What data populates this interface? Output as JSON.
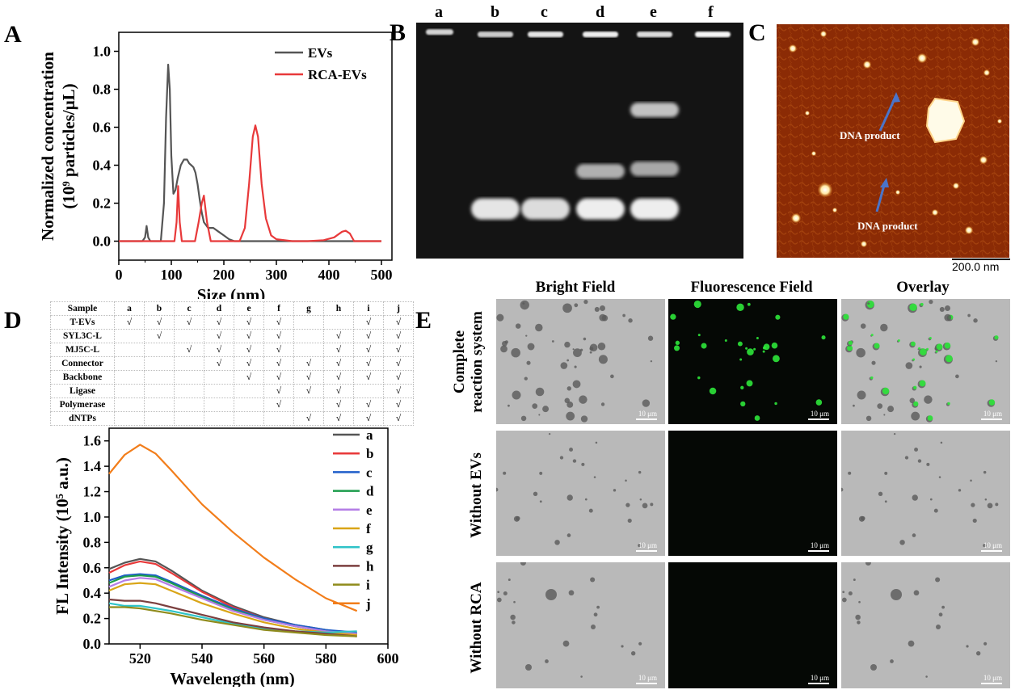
{
  "panels": {
    "A": "A",
    "B": "B",
    "C": "C",
    "D": "D",
    "E": "E"
  },
  "chart_data": [
    {
      "type": "line",
      "panel": "A",
      "xlabel": "Size (nm)",
      "ylabel": "Normalized concentration",
      "ylabel_line2": "(10⁹ particles/μL)",
      "xlim": [
        0,
        520
      ],
      "ylim": [
        -0.1,
        1.1
      ],
      "xticks": [
        0,
        100,
        200,
        300,
        400,
        500
      ],
      "yticks": [
        0.0,
        0.2,
        0.4,
        0.6,
        0.8,
        1.0
      ],
      "legend_position": "top-right",
      "series": [
        {
          "name": "EVs",
          "color": "#555555",
          "x": [
            0,
            45,
            50,
            53,
            56,
            60,
            80,
            86,
            90,
            94,
            97,
            100,
            104,
            108,
            112,
            118,
            124,
            130,
            134,
            138,
            142,
            146,
            150,
            154,
            158,
            162,
            170,
            180,
            190,
            200,
            210,
            220,
            240,
            300,
            500
          ],
          "y": [
            0,
            0,
            0.02,
            0.08,
            0.02,
            0,
            0,
            0.2,
            0.65,
            0.93,
            0.8,
            0.45,
            0.25,
            0.27,
            0.33,
            0.4,
            0.43,
            0.43,
            0.41,
            0.4,
            0.39,
            0.36,
            0.3,
            0.22,
            0.15,
            0.1,
            0.07,
            0.07,
            0.05,
            0.03,
            0.01,
            0,
            0,
            0,
            0
          ]
        },
        {
          "name": "RCA-EVs",
          "color": "#e8393a",
          "x": [
            0,
            100,
            106,
            110,
            113,
            116,
            120,
            130,
            145,
            152,
            158,
            162,
            168,
            175,
            200,
            230,
            240,
            248,
            255,
            260,
            265,
            272,
            280,
            290,
            300,
            330,
            360,
            390,
            410,
            425,
            432,
            440,
            448,
            500
          ],
          "y": [
            0,
            0,
            0,
            0.1,
            0.29,
            0.1,
            0,
            0,
            0,
            0.1,
            0.2,
            0.24,
            0.1,
            0,
            0,
            0,
            0.07,
            0.3,
            0.55,
            0.61,
            0.55,
            0.3,
            0.12,
            0.03,
            0.01,
            0,
            0,
            0.005,
            0.02,
            0.05,
            0.055,
            0.04,
            0,
            0
          ]
        }
      ]
    },
    {
      "type": "line",
      "panel": "D",
      "xlabel": "Wavelength (nm)",
      "ylabel": "FL Intensity (10⁵ a.u.)",
      "xlim": [
        510,
        600
      ],
      "ylim": [
        0,
        1.7
      ],
      "xticks": [
        520,
        540,
        560,
        580,
        600
      ],
      "yticks": [
        0.0,
        0.2,
        0.4,
        0.6,
        0.8,
        1.0,
        1.2,
        1.4,
        1.6
      ],
      "legend_position": "right",
      "x": [
        510,
        515,
        520,
        525,
        530,
        540,
        550,
        560,
        570,
        580,
        590
      ],
      "series": [
        {
          "name": "a",
          "color": "#555555",
          "values": [
            0.59,
            0.64,
            0.67,
            0.65,
            0.58,
            0.42,
            0.3,
            0.21,
            0.15,
            0.11,
            0.08
          ]
        },
        {
          "name": "b",
          "color": "#e8393a",
          "values": [
            0.56,
            0.62,
            0.65,
            0.63,
            0.56,
            0.41,
            0.29,
            0.2,
            0.14,
            0.1,
            0.07
          ]
        },
        {
          "name": "c",
          "color": "#1f5ec9",
          "values": [
            0.5,
            0.54,
            0.55,
            0.54,
            0.49,
            0.38,
            0.28,
            0.2,
            0.15,
            0.11,
            0.09
          ]
        },
        {
          "name": "d",
          "color": "#1c9c4c",
          "values": [
            0.48,
            0.53,
            0.54,
            0.53,
            0.48,
            0.37,
            0.27,
            0.19,
            0.14,
            0.1,
            0.08
          ]
        },
        {
          "name": "e",
          "color": "#b47de6",
          "values": [
            0.45,
            0.5,
            0.52,
            0.51,
            0.46,
            0.36,
            0.26,
            0.19,
            0.14,
            0.1,
            0.08
          ]
        },
        {
          "name": "f",
          "color": "#d9a517",
          "values": [
            0.42,
            0.47,
            0.48,
            0.47,
            0.42,
            0.32,
            0.24,
            0.17,
            0.12,
            0.09,
            0.07
          ]
        },
        {
          "name": "g",
          "color": "#2fc3c8",
          "values": [
            0.32,
            0.3,
            0.3,
            0.28,
            0.26,
            0.21,
            0.16,
            0.12,
            0.1,
            0.09,
            0.1
          ]
        },
        {
          "name": "h",
          "color": "#7b3f3f",
          "values": [
            0.35,
            0.34,
            0.34,
            0.32,
            0.29,
            0.23,
            0.17,
            0.13,
            0.1,
            0.08,
            0.06
          ]
        },
        {
          "name": "i",
          "color": "#8f8b1c",
          "values": [
            0.29,
            0.29,
            0.28,
            0.26,
            0.24,
            0.19,
            0.15,
            0.11,
            0.09,
            0.07,
            0.06
          ]
        },
        {
          "name": "j",
          "color": "#f27d1a",
          "values": [
            1.34,
            1.49,
            1.57,
            1.5,
            1.37,
            1.1,
            0.88,
            0.68,
            0.51,
            0.36,
            0.26
          ]
        }
      ]
    }
  ],
  "gel": {
    "lanes": [
      "a",
      "b",
      "c",
      "d",
      "e",
      "f"
    ],
    "bands": {
      "a": [
        {
          "y": 0.04,
          "i": 0.75
        }
      ],
      "b": [
        {
          "y": 0.05,
          "i": 0.7
        },
        {
          "y": 0.79,
          "i": 0.85
        }
      ],
      "c": [
        {
          "y": 0.05,
          "i": 0.85
        },
        {
          "y": 0.79,
          "i": 0.8
        }
      ],
      "d": [
        {
          "y": 0.05,
          "i": 0.9
        },
        {
          "y": 0.63,
          "i": 0.55
        },
        {
          "y": 0.79,
          "i": 0.9
        }
      ],
      "e": [
        {
          "y": 0.05,
          "i": 0.8
        },
        {
          "y": 0.37,
          "i": 0.65
        },
        {
          "y": 0.62,
          "i": 0.5
        },
        {
          "y": 0.79,
          "i": 0.9
        }
      ],
      "f": [
        {
          "y": 0.05,
          "i": 0.95
        }
      ]
    }
  },
  "afm": {
    "annotations": [
      "DNA product",
      "DNA product"
    ],
    "scale_label": "200.0 nm",
    "arrow_color": "#4a74c9",
    "background_color": "#8b2b05"
  },
  "sample_table": {
    "columns": [
      "Sample",
      "a",
      "b",
      "c",
      "d",
      "e",
      "f",
      "g",
      "h",
      "i",
      "j"
    ],
    "rows": [
      [
        "T-EVs",
        "√",
        "√",
        "√",
        "√",
        "√",
        "√",
        "",
        "",
        "√",
        "√"
      ],
      [
        "SYL3C-L",
        "",
        "√",
        "",
        "√",
        "√",
        "√",
        "",
        "√",
        "√",
        "√"
      ],
      [
        "MJ5C-L",
        "",
        "",
        "√",
        "√",
        "√",
        "√",
        "",
        "√",
        "√",
        "√"
      ],
      [
        "Connector",
        "",
        "",
        "",
        "√",
        "√",
        "√",
        "√",
        "√",
        "√",
        "√"
      ],
      [
        "Backbone",
        "",
        "",
        "",
        "",
        "√",
        "√",
        "√",
        "√",
        "√",
        "√"
      ],
      [
        "Ligase",
        "",
        "",
        "",
        "",
        "",
        "√",
        "√",
        "√",
        "",
        "√"
      ],
      [
        "Polymerase",
        "",
        "",
        "",
        "",
        "",
        "√",
        "",
        "√",
        "√",
        "√"
      ],
      [
        "dNTPs",
        "",
        "",
        "",
        "",
        "",
        "",
        "√",
        "√",
        "√",
        "√"
      ]
    ]
  },
  "microscopy": {
    "columns": [
      "Bright Field",
      "Fluorescence Field",
      "Overlay"
    ],
    "rows": [
      "Complete reaction system",
      "Without EVs",
      "Without RCA"
    ],
    "row_line1": [
      "Complete",
      "Without EVs",
      "Without RCA"
    ],
    "row_line2": [
      "reaction system",
      "",
      ""
    ],
    "scale_label": "10 μm",
    "fluor_color": "#2ee63a"
  }
}
